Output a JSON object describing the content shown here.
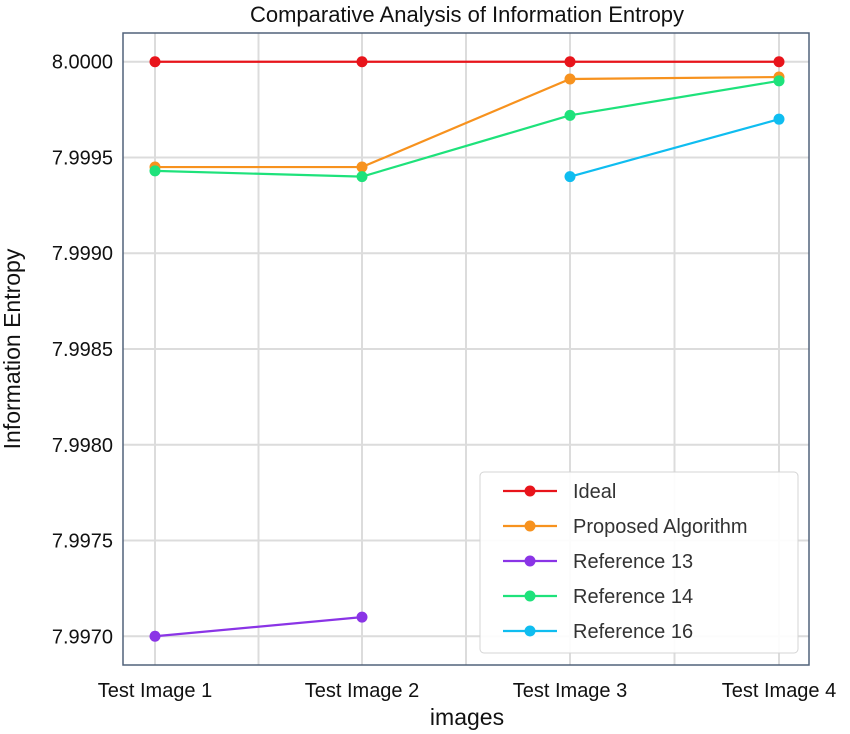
{
  "chart_data": {
    "type": "line",
    "title": "Comparative Analysis of Information Entropy",
    "xlabel": "images",
    "ylabel": "Information Entropy",
    "categories": [
      "Test Image 1",
      "Test Image 2",
      "Test Image 3",
      "Test Image 4"
    ],
    "ylim": [
      7.99685,
      8.00015
    ],
    "yticks": [
      7.997,
      7.9975,
      7.998,
      7.9985,
      7.999,
      7.9995,
      8.0
    ],
    "ytick_labels": [
      "7.9970",
      "7.9975",
      "7.9980",
      "7.9985",
      "7.9990",
      "7.9995",
      "8.0000"
    ],
    "grid": true,
    "legend_position": "lower-right",
    "series": [
      {
        "name": "Ideal",
        "color": "#e8141b",
        "values": [
          8.0,
          8.0,
          8.0,
          8.0
        ]
      },
      {
        "name": "Proposed Algorithm",
        "color": "#f7921e",
        "values": [
          7.99945,
          7.99945,
          7.99991,
          7.99992
        ]
      },
      {
        "name": "Reference 13",
        "color": "#8a34e6",
        "values": [
          7.997,
          7.9971,
          null,
          null
        ]
      },
      {
        "name": "Reference 14",
        "color": "#1ee27b",
        "values": [
          7.99943,
          7.9994,
          7.99972,
          7.9999
        ]
      },
      {
        "name": "Reference 16",
        "color": "#0fbdf0",
        "values": [
          null,
          null,
          7.9994,
          7.9997
        ]
      }
    ]
  }
}
